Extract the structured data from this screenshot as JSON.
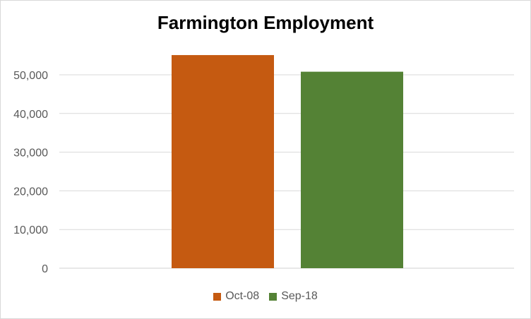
{
  "chart_data": {
    "type": "bar",
    "title": "Farmington Employment",
    "xlabel": "",
    "ylabel": "",
    "ylim": [
      0,
      55000
    ],
    "yticks": [
      "0",
      "10,000",
      "20,000",
      "30,000",
      "40,000",
      "50,000"
    ],
    "ytick_values": [
      0,
      10000,
      20000,
      30000,
      40000,
      50000
    ],
    "grid": true,
    "legend_position": "bottom",
    "series": [
      {
        "name": "Oct-08",
        "values": [
          55100
        ],
        "color": "#c55a11"
      },
      {
        "name": "Sep-18",
        "values": [
          50800
        ],
        "color": "#548235"
      }
    ]
  }
}
